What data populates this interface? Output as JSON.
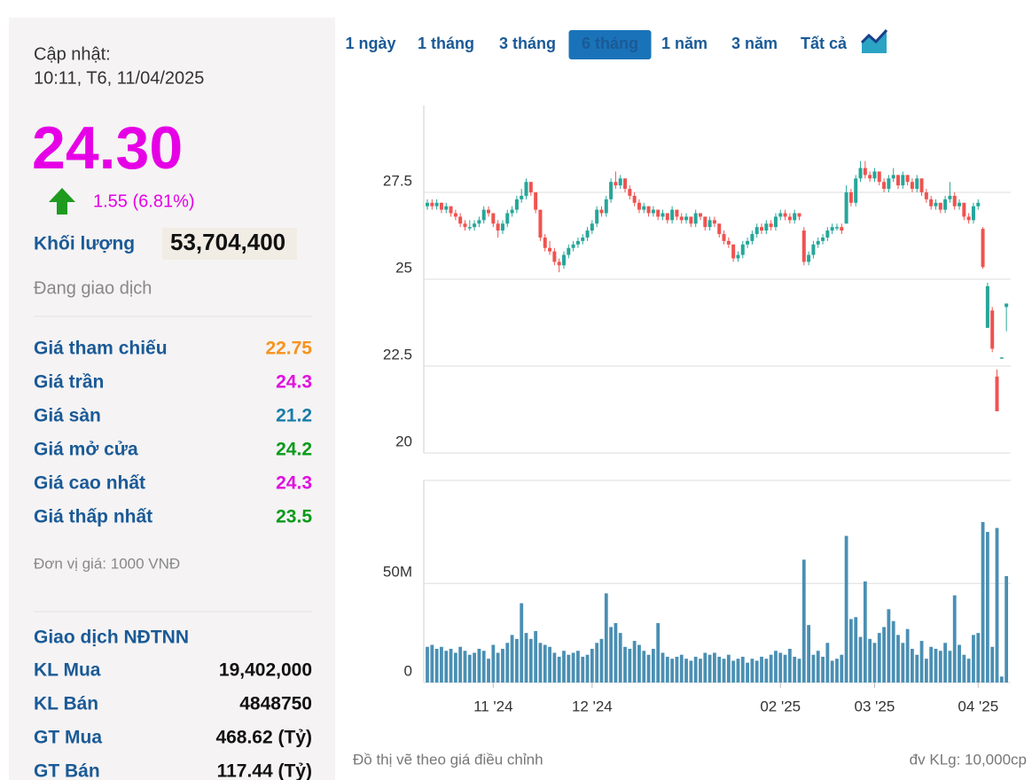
{
  "quote": {
    "update_label": "Cập nhật:",
    "update_time": "10:11, T6, 11/04/2025",
    "price": "24.30",
    "change": "1.55 (6.81%)",
    "volume_label": "Khối lượng",
    "volume": "53,704,400",
    "status": "Đang giao dịch",
    "stats": [
      {
        "label": "Giá tham chiếu",
        "value": "22.75",
        "color": "#f7931e"
      },
      {
        "label": "Giá trần",
        "value": "24.3",
        "color": "#e010e0"
      },
      {
        "label": "Giá sàn",
        "value": "21.2",
        "color": "#1a7ca8"
      },
      {
        "label": "Giá mở cửa",
        "value": "24.2",
        "color": "#0a9a1a"
      },
      {
        "label": "Giá cao nhất",
        "value": "24.3",
        "color": "#e010e0"
      },
      {
        "label": "Giá thấp nhất",
        "value": "23.5",
        "color": "#0a9a1a"
      }
    ],
    "unit_note": "Đơn vị giá: 1000 VNĐ",
    "foreign_title": "Giao dịch NĐTNN",
    "foreign": [
      {
        "label": "KL Mua",
        "value": "19,402,000"
      },
      {
        "label": "KL Bán",
        "value": "4848750"
      },
      {
        "label": "GT Mua",
        "value": "468.62 (Tỷ)"
      },
      {
        "label": "GT Bán",
        "value": "117.44 (Tỷ)"
      }
    ]
  },
  "tabs": [
    "1 ngày",
    "1 tháng",
    "3 tháng",
    "6 tháng",
    "1 năm",
    "3 năm",
    "Tất cả"
  ],
  "active_tab": 3,
  "footer_note": "Đồ thị vẽ theo giá điều chỉnh",
  "volume_unit": "đv KLg: 10,000cp",
  "chart_data": [
    {
      "type": "candlestick",
      "up_color": "#26a69a",
      "down_color": "#ef5350",
      "ylim": [
        20,
        30
      ],
      "yticks": [
        20,
        22.5,
        25,
        27.5
      ],
      "grid": true,
      "categories": [
        null,
        null,
        null,
        null,
        null,
        null,
        null,
        null,
        null,
        null,
        null,
        null,
        null,
        null,
        "11 '24",
        null,
        null,
        null,
        null,
        null,
        null,
        null,
        null,
        null,
        null,
        null,
        null,
        null,
        null,
        null,
        null,
        null,
        null,
        null,
        null,
        "12 '24",
        null,
        null,
        null,
        null,
        null,
        null,
        null,
        null,
        null,
        null,
        null,
        null,
        null,
        null,
        null,
        null,
        null,
        null,
        null,
        null,
        null,
        null,
        null,
        null,
        null,
        null,
        null,
        null,
        null,
        null,
        null,
        null,
        null,
        null,
        null,
        null,
        null,
        null,
        null,
        "02 '25",
        null,
        null,
        null,
        null,
        null,
        null,
        null,
        null,
        null,
        null,
        null,
        null,
        null,
        null,
        null,
        null,
        null,
        null,
        null,
        "03 '25",
        null,
        null,
        null,
        null,
        null,
        null,
        null,
        null,
        null,
        null,
        null,
        null,
        null,
        null,
        null,
        null,
        null,
        null,
        null,
        null,
        null,
        "04 '25",
        null,
        null,
        null,
        null,
        null,
        null
      ],
      "ohlc": [
        [
          27.1,
          27.3,
          27.0,
          27.2
        ],
        [
          27.2,
          27.3,
          27.0,
          27.1
        ],
        [
          27.1,
          27.3,
          27.0,
          27.2
        ],
        [
          27.2,
          27.2,
          26.9,
          27.0
        ],
        [
          27.0,
          27.2,
          26.9,
          27.1
        ],
        [
          27.1,
          27.1,
          26.8,
          26.9
        ],
        [
          26.9,
          27.0,
          26.7,
          26.8
        ],
        [
          26.8,
          26.9,
          26.5,
          26.6
        ],
        [
          26.6,
          26.7,
          26.4,
          26.5
        ],
        [
          26.5,
          26.7,
          26.4,
          26.5
        ],
        [
          26.5,
          26.7,
          26.4,
          26.6
        ],
        [
          26.6,
          26.8,
          26.5,
          26.7
        ],
        [
          26.7,
          27.1,
          26.6,
          27.0
        ],
        [
          27.0,
          27.1,
          26.8,
          26.9
        ],
        [
          26.9,
          26.9,
          26.5,
          26.6
        ],
        [
          26.6,
          26.7,
          26.2,
          26.4
        ],
        [
          26.4,
          26.7,
          26.3,
          26.6
        ],
        [
          26.6,
          27.0,
          26.5,
          26.9
        ],
        [
          26.9,
          27.1,
          26.8,
          27.0
        ],
        [
          27.0,
          27.4,
          26.9,
          27.3
        ],
        [
          27.3,
          27.6,
          27.2,
          27.4
        ],
        [
          27.4,
          27.9,
          27.3,
          27.8
        ],
        [
          27.8,
          27.8,
          27.4,
          27.5
        ],
        [
          27.5,
          27.5,
          26.9,
          27.0
        ],
        [
          27.0,
          27.0,
          26.1,
          26.2
        ],
        [
          26.2,
          26.3,
          25.8,
          25.9
        ],
        [
          25.9,
          26.1,
          25.7,
          25.8
        ],
        [
          25.8,
          25.9,
          25.4,
          25.5
        ],
        [
          25.5,
          25.6,
          25.2,
          25.4
        ],
        [
          25.4,
          25.8,
          25.3,
          25.7
        ],
        [
          25.7,
          26.0,
          25.6,
          25.9
        ],
        [
          25.9,
          26.1,
          25.8,
          26.0
        ],
        [
          26.0,
          26.2,
          25.9,
          26.1
        ],
        [
          26.1,
          26.3,
          26.0,
          26.2
        ],
        [
          26.2,
          26.5,
          26.1,
          26.4
        ],
        [
          26.4,
          26.7,
          26.3,
          26.6
        ],
        [
          26.6,
          27.1,
          26.5,
          27.0
        ],
        [
          27.0,
          27.1,
          26.8,
          26.9
        ],
        [
          26.9,
          27.4,
          26.8,
          27.3
        ],
        [
          27.3,
          27.9,
          27.2,
          27.8
        ],
        [
          27.8,
          28.1,
          27.6,
          27.7
        ],
        [
          27.7,
          28.0,
          27.6,
          27.9
        ],
        [
          27.9,
          27.9,
          27.5,
          27.6
        ],
        [
          27.6,
          27.7,
          27.3,
          27.4
        ],
        [
          27.4,
          27.5,
          27.1,
          27.2
        ],
        [
          27.2,
          27.3,
          26.9,
          27.0
        ],
        [
          27.0,
          27.2,
          26.9,
          27.1
        ],
        [
          27.1,
          27.1,
          26.8,
          26.9
        ],
        [
          26.9,
          27.1,
          26.8,
          27.0
        ],
        [
          27.0,
          27.0,
          26.7,
          26.8
        ],
        [
          26.8,
          27.0,
          26.7,
          26.9
        ],
        [
          26.9,
          26.9,
          26.6,
          26.7
        ],
        [
          26.7,
          27.1,
          26.6,
          27.0
        ],
        [
          27.0,
          27.0,
          26.7,
          26.8
        ],
        [
          26.8,
          26.9,
          26.6,
          26.7
        ],
        [
          26.7,
          26.9,
          26.6,
          26.8
        ],
        [
          26.8,
          26.8,
          26.5,
          26.6
        ],
        [
          26.6,
          27.0,
          26.5,
          26.9
        ],
        [
          26.9,
          26.9,
          26.7,
          26.8
        ],
        [
          26.8,
          26.8,
          26.4,
          26.5
        ],
        [
          26.5,
          26.8,
          26.4,
          26.7
        ],
        [
          26.7,
          26.8,
          26.5,
          26.6
        ],
        [
          26.6,
          26.6,
          26.2,
          26.3
        ],
        [
          26.3,
          26.4,
          26.0,
          26.1
        ],
        [
          26.1,
          26.2,
          25.9,
          26.0
        ],
        [
          26.0,
          26.0,
          25.5,
          25.6
        ],
        [
          25.6,
          25.8,
          25.5,
          25.7
        ],
        [
          25.7,
          26.1,
          25.6,
          26.0
        ],
        [
          26.0,
          26.2,
          25.9,
          26.1
        ],
        [
          26.1,
          26.4,
          26.0,
          26.3
        ],
        [
          26.3,
          26.6,
          26.2,
          26.5
        ],
        [
          26.5,
          26.6,
          26.3,
          26.4
        ],
        [
          26.4,
          26.7,
          26.3,
          26.6
        ],
        [
          26.6,
          26.7,
          26.4,
          26.5
        ],
        [
          26.5,
          26.9,
          26.4,
          26.8
        ],
        [
          26.8,
          27.0,
          26.7,
          26.9
        ],
        [
          26.9,
          27.0,
          26.7,
          26.8
        ],
        [
          26.8,
          26.9,
          26.6,
          26.7
        ],
        [
          26.7,
          27.0,
          26.6,
          26.9
        ],
        [
          26.9,
          26.9,
          26.7,
          26.8
        ],
        [
          26.4,
          26.5,
          25.4,
          25.5
        ],
        [
          25.5,
          25.8,
          25.4,
          25.7
        ],
        [
          25.7,
          26.1,
          25.6,
          26.0
        ],
        [
          26.0,
          26.2,
          25.9,
          26.1
        ],
        [
          26.1,
          26.3,
          26.0,
          26.2
        ],
        [
          26.2,
          26.5,
          26.1,
          26.4
        ],
        [
          26.4,
          26.6,
          26.3,
          26.5
        ],
        [
          26.5,
          26.6,
          26.4,
          26.5
        ],
        [
          26.5,
          26.6,
          26.3,
          26.4
        ],
        [
          26.6,
          27.7,
          26.6,
          27.5
        ],
        [
          27.5,
          27.6,
          27.1,
          27.2
        ],
        [
          27.2,
          28.0,
          27.1,
          27.9
        ],
        [
          27.9,
          28.4,
          27.8,
          28.2
        ],
        [
          28.2,
          28.4,
          27.9,
          28.0
        ],
        [
          28.0,
          28.1,
          27.8,
          27.9
        ],
        [
          27.9,
          28.2,
          27.8,
          28.1
        ],
        [
          28.1,
          28.1,
          27.7,
          27.8
        ],
        [
          27.8,
          27.9,
          27.5,
          27.6
        ],
        [
          27.6,
          28.0,
          27.5,
          27.9
        ],
        [
          27.9,
          28.2,
          27.8,
          28.0
        ],
        [
          28.0,
          28.0,
          27.6,
          27.7
        ],
        [
          27.7,
          28.1,
          27.6,
          28.0
        ],
        [
          28.0,
          28.0,
          27.7,
          27.8
        ],
        [
          27.8,
          27.9,
          27.5,
          27.6
        ],
        [
          27.6,
          28.0,
          27.5,
          27.9
        ],
        [
          27.9,
          27.9,
          27.4,
          27.5
        ],
        [
          27.5,
          27.6,
          27.2,
          27.3
        ],
        [
          27.3,
          27.4,
          27.0,
          27.1
        ],
        [
          27.1,
          27.3,
          27.0,
          27.2
        ],
        [
          27.2,
          27.2,
          26.9,
          27.0
        ],
        [
          27.0,
          27.4,
          26.9,
          27.3
        ],
        [
          27.3,
          27.8,
          27.2,
          27.4
        ],
        [
          27.4,
          27.5,
          27.0,
          27.1
        ],
        [
          27.1,
          27.3,
          27.0,
          27.2
        ],
        [
          27.2,
          27.2,
          26.7,
          26.8
        ],
        [
          26.8,
          26.9,
          26.6,
          26.7
        ],
        [
          26.7,
          27.2,
          26.6,
          27.1
        ],
        [
          27.1,
          27.3,
          27.0,
          27.2
        ],
        [
          26.45,
          26.5,
          25.3,
          25.35
        ],
        [
          23.6,
          24.9,
          23.6,
          24.8
        ],
        [
          24.1,
          24.2,
          22.9,
          23.0
        ],
        [
          22.2,
          22.4,
          21.2,
          21.2
        ],
        [
          22.75,
          22.75,
          22.75,
          22.75
        ],
        [
          24.2,
          24.3,
          23.5,
          24.3
        ]
      ]
    },
    {
      "type": "bar",
      "color": "#4a8fb3",
      "ylim": [
        0,
        102
      ],
      "yticks": [
        {
          "value": 0,
          "label": "0"
        },
        {
          "value": 50,
          "label": "50M"
        }
      ],
      "grid": true,
      "values": [
        18,
        19,
        17,
        18,
        16,
        17,
        15,
        18,
        16,
        14,
        15,
        17,
        16,
        12,
        19,
        15,
        17,
        20,
        24,
        22,
        40,
        25,
        22,
        26,
        20,
        19,
        18,
        15,
        13,
        16,
        14,
        15,
        16,
        13,
        14,
        17,
        20,
        22,
        45,
        28,
        30,
        25,
        18,
        17,
        21,
        19,
        16,
        14,
        17,
        30,
        15,
        13,
        12,
        13,
        14,
        12,
        11,
        13,
        12,
        15,
        14,
        15,
        13,
        12,
        14,
        11,
        12,
        13,
        10,
        12,
        11,
        13,
        12,
        14,
        16,
        15,
        14,
        17,
        13,
        12,
        62,
        29,
        14,
        16,
        13,
        20,
        11,
        12,
        14,
        74,
        32,
        33,
        23,
        51,
        22,
        20,
        25,
        28,
        37,
        31,
        24,
        20,
        27,
        17,
        14,
        21,
        12,
        18,
        17,
        16,
        20,
        16,
        44,
        19,
        14,
        12,
        24,
        25,
        81,
        76,
        18,
        78,
        3,
        53.7
      ]
    }
  ]
}
